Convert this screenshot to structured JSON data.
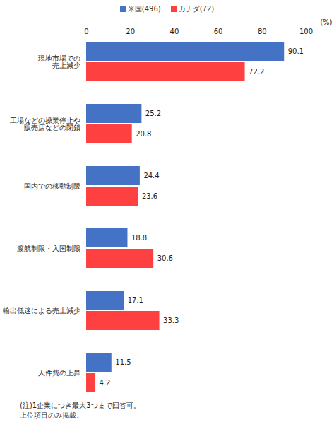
{
  "chart_data": {
    "type": "bar",
    "orientation": "horizontal",
    "categories": [
      "現地市場での\n売上減少",
      "工場などの操業停止や\n販売店などの閉鎖",
      "国内での移動制限",
      "渡航制限・入国制限",
      "輸出低迷による売上減少",
      "人件費の上昇"
    ],
    "series": [
      {
        "name": "米国(496)",
        "color": "#4472c4",
        "values": [
          90.1,
          25.2,
          24.4,
          18.8,
          17.1,
          11.5
        ]
      },
      {
        "name": "カナダ(72)",
        "color": "#ff4040",
        "values": [
          72.2,
          20.8,
          23.6,
          30.6,
          33.3,
          4.2
        ]
      }
    ],
    "x_label": "(%)",
    "xlim": [
      0,
      100
    ],
    "xticks": [
      0,
      20,
      40,
      60,
      80,
      100
    ],
    "grid": false,
    "legend": "top",
    "data_labels": true,
    "annotations": [
      "(注)1企業につき最大3つまで回答可。",
      "上位項目のみ掲載。"
    ]
  }
}
